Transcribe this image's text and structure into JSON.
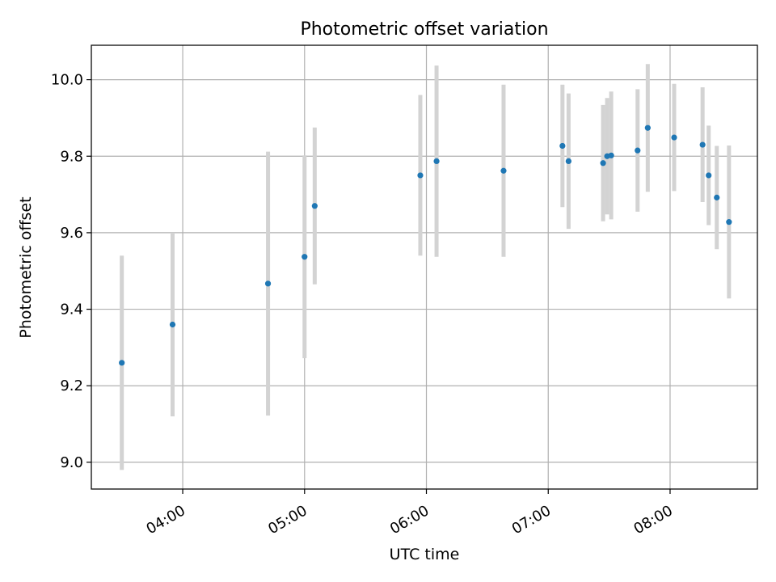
{
  "chart_data": {
    "type": "scatter",
    "title": "Photometric offset variation",
    "xlabel": "UTC time",
    "ylabel": "Photometric offset",
    "x_ticks": [
      "04:00",
      "05:00",
      "06:00",
      "07:00",
      "08:00"
    ],
    "y_ticks": [
      9.0,
      9.2,
      9.4,
      9.6,
      9.8,
      10.0
    ],
    "ylim": [
      8.93,
      10.09
    ],
    "xlim": [
      "03:15",
      "08:43"
    ],
    "grid": true,
    "colors": {
      "points": "#1f77b4",
      "errorbars": "#d3d3d3",
      "grid": "#b0b0b0"
    },
    "series": [
      {
        "points": [
          {
            "x": "03:30",
            "y": 9.26,
            "yerr": 0.28
          },
          {
            "x": "03:55",
            "y": 9.36,
            "yerr": 0.24
          },
          {
            "x": "04:42",
            "y": 9.467,
            "yerr": 0.345
          },
          {
            "x": "05:00",
            "y": 9.537,
            "yerr": 0.265
          },
          {
            "x": "05:05",
            "y": 9.67,
            "yerr": 0.205
          },
          {
            "x": "05:57",
            "y": 9.75,
            "yerr": 0.21
          },
          {
            "x": "06:05",
            "y": 9.787,
            "yerr": 0.25
          },
          {
            "x": "06:38",
            "y": 9.762,
            "yerr": 0.225
          },
          {
            "x": "07:07",
            "y": 9.827,
            "yerr": 0.16
          },
          {
            "x": "07:10",
            "y": 9.787,
            "yerr": 0.177
          },
          {
            "x": "07:27",
            "y": 9.782,
            "yerr": 0.152
          },
          {
            "x": "07:29",
            "y": 9.8,
            "yerr": 0.152
          },
          {
            "x": "07:31",
            "y": 9.802,
            "yerr": 0.167
          },
          {
            "x": "07:44",
            "y": 9.815,
            "yerr": 0.16
          },
          {
            "x": "07:49",
            "y": 9.874,
            "yerr": 0.167
          },
          {
            "x": "08:02",
            "y": 9.849,
            "yerr": 0.14
          },
          {
            "x": "08:16",
            "y": 9.83,
            "yerr": 0.15
          },
          {
            "x": "08:19",
            "y": 9.75,
            "yerr": 0.13
          },
          {
            "x": "08:23",
            "y": 9.692,
            "yerr": 0.135
          },
          {
            "x": "08:29",
            "y": 9.628,
            "yerr": 0.2
          }
        ]
      }
    ]
  }
}
